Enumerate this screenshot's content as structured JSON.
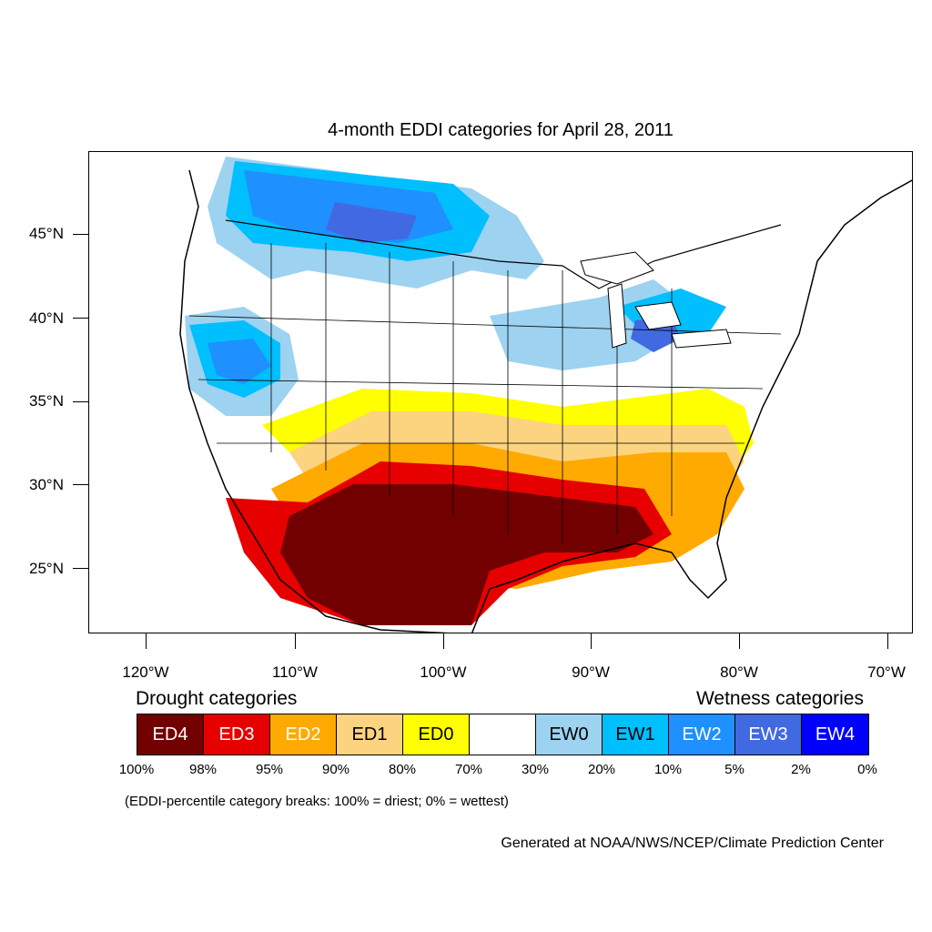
{
  "title": "4-month EDDI categories for April 28, 2011",
  "latitude_labels": [
    "45°N",
    "40°N",
    "35°N",
    "30°N",
    "25°N"
  ],
  "longitude_labels": [
    "120°W",
    "110°W",
    "100°W",
    "90°W",
    "80°W",
    "70°W"
  ],
  "legend": {
    "drought_heading": "Drought categories",
    "wetness_heading": "Wetness categories",
    "categories": [
      {
        "label": "ED4",
        "color": "#730000",
        "text_color": "#ffffff"
      },
      {
        "label": "ED3",
        "color": "#e60000",
        "text_color": "#ffffff"
      },
      {
        "label": "ED2",
        "color": "#ffaa00",
        "text_color": "#ffffff"
      },
      {
        "label": "ED1",
        "color": "#fcd37f",
        "text_color": "#000000"
      },
      {
        "label": "ED0",
        "color": "#ffff00",
        "text_color": "#000000"
      },
      {
        "label": "",
        "color": "#ffffff",
        "text_color": "#000000"
      },
      {
        "label": "EW0",
        "color": "#9dd2f0",
        "text_color": "#000000"
      },
      {
        "label": "EW1",
        "color": "#00bfff",
        "text_color": "#000000"
      },
      {
        "label": "EW2",
        "color": "#1e90ff",
        "text_color": "#ffffff"
      },
      {
        "label": "EW3",
        "color": "#4169e1",
        "text_color": "#ffffff"
      },
      {
        "label": "EW4",
        "color": "#0000ff",
        "text_color": "#ffffff"
      }
    ],
    "breaks": [
      "100%",
      "98%",
      "95%",
      "90%",
      "80%",
      "70%",
      "30%",
      "20%",
      "10%",
      "5%",
      "2%",
      "0%"
    ]
  },
  "caption": "(EDDI-percentile category breaks: 100% = driest; 0% = wettest)",
  "credit": "Generated at NOAA/NWS/NCEP/Climate Prediction Center"
}
